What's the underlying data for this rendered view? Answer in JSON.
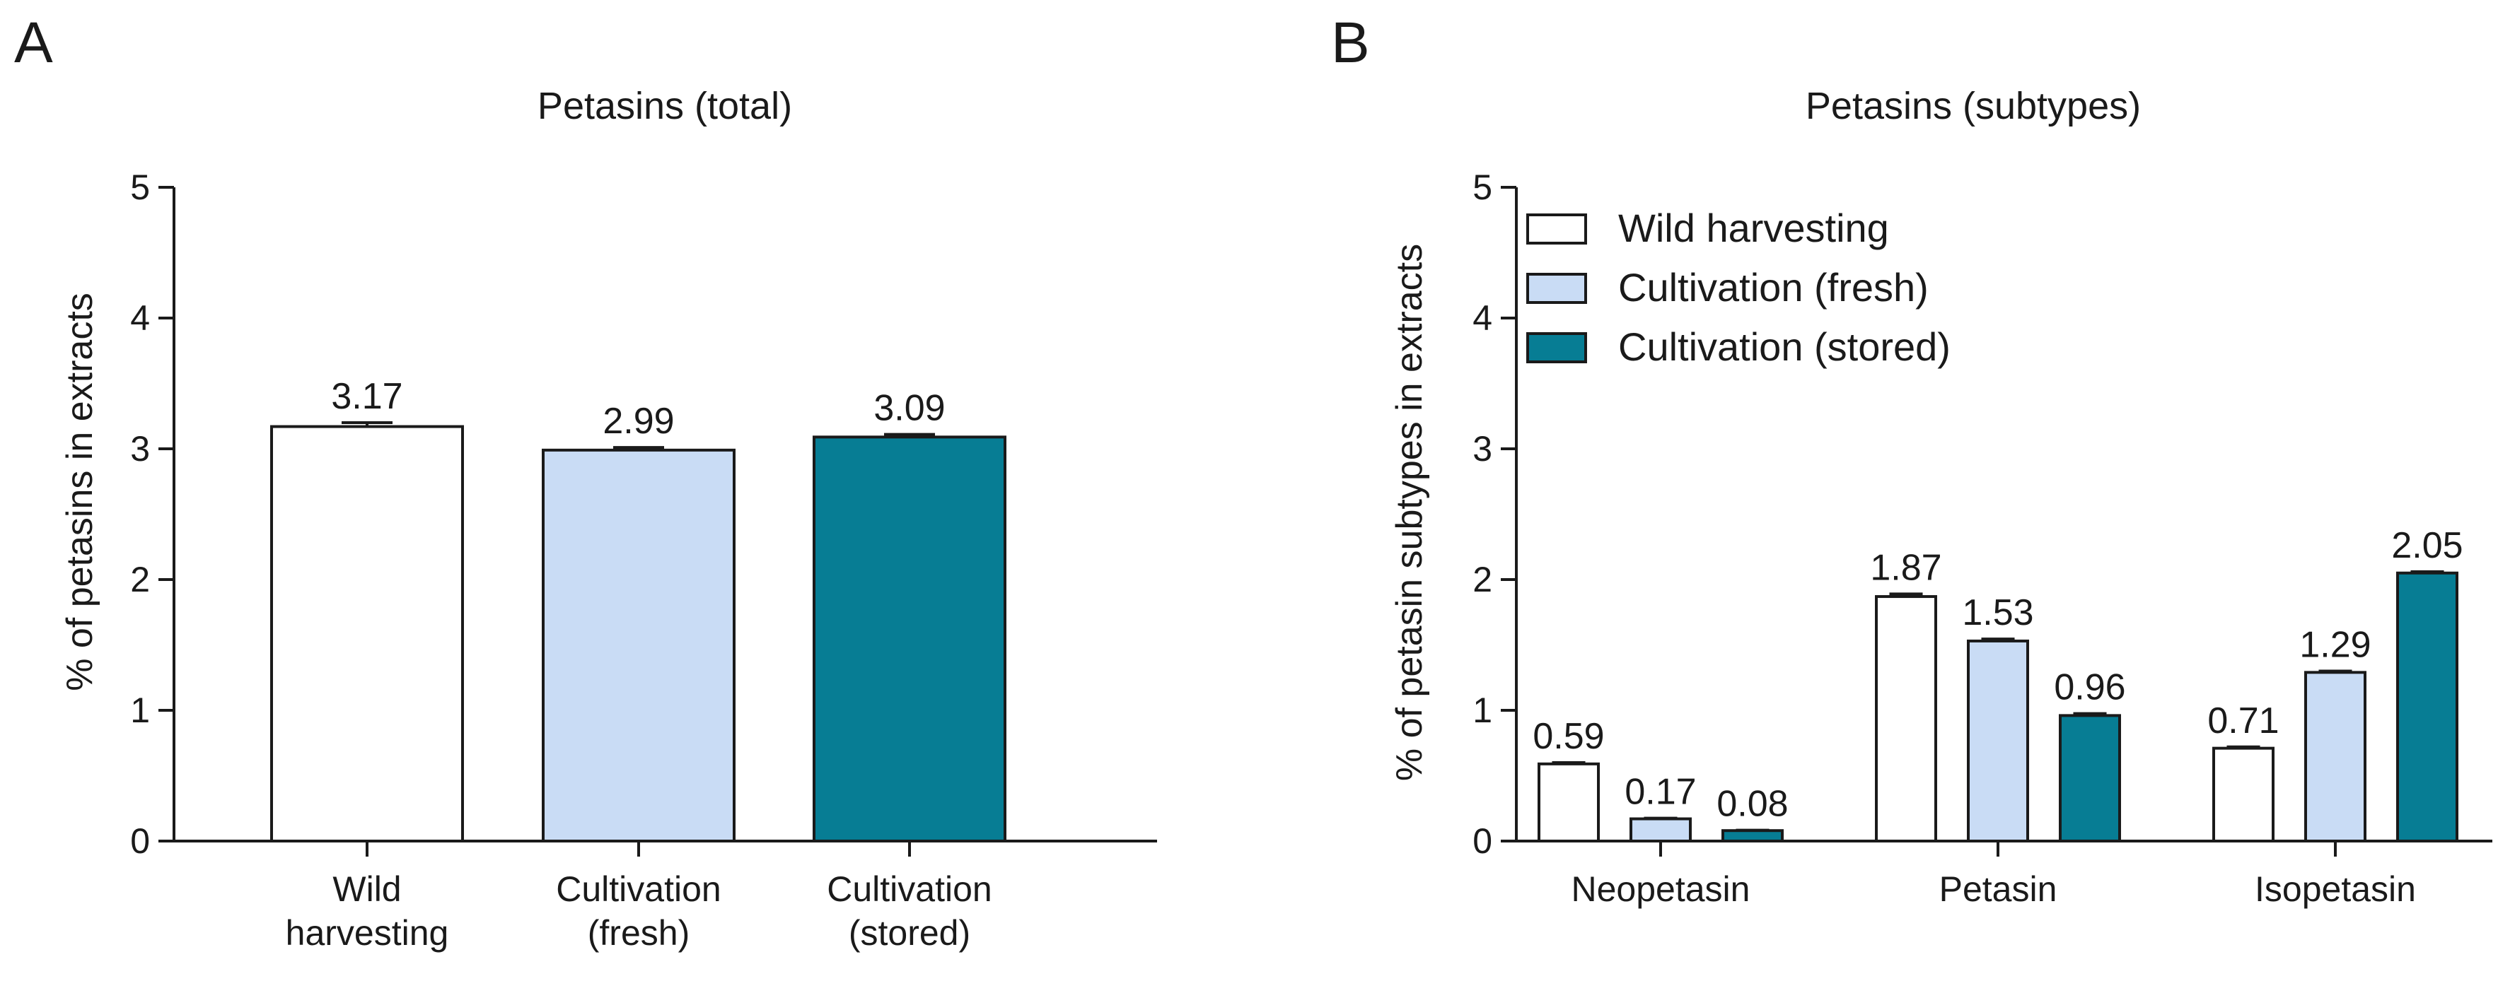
{
  "panels": {
    "a": "A",
    "b": "B"
  },
  "colors": {
    "wild": "#ffffff",
    "fresh": "#c9dcf5",
    "stored": "#077d94",
    "axis": "#1a1a1a"
  },
  "chart_data": [
    {
      "type": "bar",
      "title": "Petasins (total)",
      "ylabel": "% of petasins in extracts",
      "xlabel": "",
      "ylim": [
        0,
        5
      ],
      "yticks": [
        0,
        1,
        2,
        3,
        4,
        5
      ],
      "categories": [
        [
          "Wild",
          "harvesting"
        ],
        [
          "Cultivation",
          "(fresh)"
        ],
        [
          "Cultivation",
          "(stored)"
        ]
      ],
      "values": [
        3.17,
        2.99,
        3.09
      ],
      "value_labels": [
        "3.17",
        "2.99",
        "3.09"
      ],
      "errors": [
        0.03,
        0.02,
        0.02
      ],
      "bar_colors": [
        "#ffffff",
        "#c9dcf5",
        "#077d94"
      ]
    },
    {
      "type": "bar",
      "title": "Petasins (subtypes)",
      "ylabel": "% of petasin subtypes in extracts",
      "xlabel": "",
      "ylim": [
        0,
        5
      ],
      "yticks": [
        0,
        1,
        2,
        3,
        4,
        5
      ],
      "categories": [
        "Neopetasin",
        "Petasin",
        "Isopetasin"
      ],
      "legend_position": "top-left",
      "series": [
        {
          "name": "Wild harvesting",
          "color": "#ffffff",
          "values": [
            0.59,
            1.87,
            0.71
          ],
          "value_labels": [
            "0.59",
            "1.87",
            "0.71"
          ],
          "errors": [
            0.01,
            0.02,
            0.01
          ]
        },
        {
          "name": "Cultivation (fresh)",
          "color": "#c9dcf5",
          "values": [
            0.17,
            1.53,
            1.29
          ],
          "value_labels": [
            "0.17",
            "1.53",
            "1.29"
          ],
          "errors": [
            0.005,
            0.015,
            0.01
          ]
        },
        {
          "name": "Cultivation (stored)",
          "color": "#077d94",
          "values": [
            0.08,
            0.96,
            2.05
          ],
          "value_labels": [
            "0.08",
            "0.96",
            "2.05"
          ],
          "errors": [
            0.003,
            0.015,
            0.01
          ]
        }
      ]
    }
  ]
}
